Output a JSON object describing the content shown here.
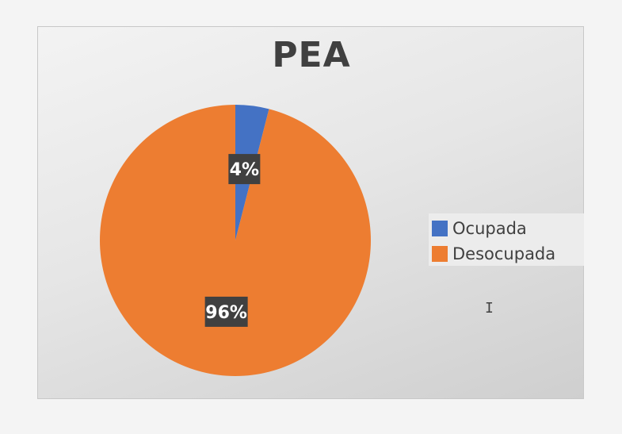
{
  "chart_data": {
    "type": "pie",
    "title": "PEA",
    "categories": [
      "Ocupada",
      "Desocupada"
    ],
    "values": [
      4,
      96
    ],
    "data_labels": [
      "4%",
      "96%"
    ],
    "colors": [
      "#4472c4",
      "#ed7d31"
    ],
    "legend_position": "right",
    "start_angle_deg": 0
  },
  "colors": {
    "label_box": "#404040"
  },
  "cursor": {
    "glyph": "I",
    "icon": "text-cursor-icon"
  }
}
